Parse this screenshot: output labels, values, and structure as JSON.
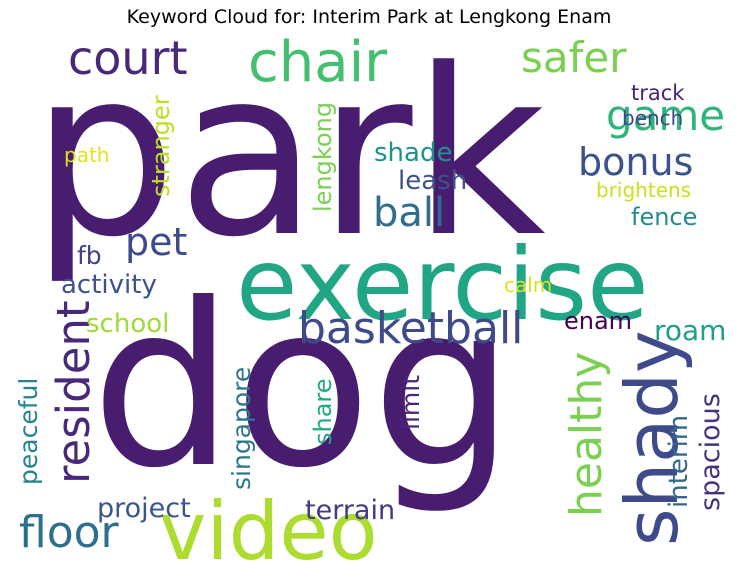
{
  "title": "Keyword Cloud for: Interim Park at Lengkong Enam",
  "chart_data": {
    "type": "wordcloud",
    "title": "Keyword Cloud for: Interim Park at Lengkong Enam",
    "words": [
      {
        "text": "park",
        "weight": 1.0,
        "color": "#481d6f"
      },
      {
        "text": "dog",
        "weight": 0.98,
        "color": "#481d6f"
      },
      {
        "text": "exercise",
        "weight": 0.55,
        "color": "#21a685"
      },
      {
        "text": "video",
        "weight": 0.42,
        "color": "#addc30"
      },
      {
        "text": "shady",
        "weight": 0.4,
        "color": "#3e4a89"
      },
      {
        "text": "chair",
        "weight": 0.28,
        "color": "#44bf70"
      },
      {
        "text": "basketball",
        "weight": 0.22,
        "color": "#3e4a89"
      },
      {
        "text": "court",
        "weight": 0.22,
        "color": "#482878"
      },
      {
        "text": "resident",
        "weight": 0.22,
        "color": "#482878"
      },
      {
        "text": "healthy",
        "weight": 0.22,
        "color": "#7ad151"
      },
      {
        "text": "floor",
        "weight": 0.2,
        "color": "#2d708e"
      },
      {
        "text": "game",
        "weight": 0.2,
        "color": "#2fb47c"
      },
      {
        "text": "safer",
        "weight": 0.2,
        "color": "#7ad151"
      },
      {
        "text": "bonus",
        "weight": 0.18,
        "color": "#3b528b"
      },
      {
        "text": "ball",
        "weight": 0.18,
        "color": "#2f6c8e"
      },
      {
        "text": "pet",
        "weight": 0.18,
        "color": "#3e4a89"
      },
      {
        "text": "roam",
        "weight": 0.14,
        "color": "#1f9e89"
      },
      {
        "text": "project",
        "weight": 0.13,
        "color": "#39568c"
      },
      {
        "text": "terrain",
        "weight": 0.13,
        "color": "#443983"
      },
      {
        "text": "interim",
        "weight": 0.13,
        "color": "#31688e"
      },
      {
        "text": "spacious",
        "weight": 0.13,
        "color": "#46337e"
      },
      {
        "text": "peaceful",
        "weight": 0.12,
        "color": "#25858e"
      },
      {
        "text": "singapore",
        "weight": 0.12,
        "color": "#2a788e"
      },
      {
        "text": "limit",
        "weight": 0.12,
        "color": "#482677"
      },
      {
        "text": "share",
        "weight": 0.12,
        "color": "#22a884"
      },
      {
        "text": "stranger",
        "weight": 0.11,
        "color": "#bddf26"
      },
      {
        "text": "lengkong",
        "weight": 0.11,
        "color": "#7ad151"
      },
      {
        "text": "shade",
        "weight": 0.12,
        "color": "#20928c"
      },
      {
        "text": "leash",
        "weight": 0.12,
        "color": "#3b528b"
      },
      {
        "text": "fence",
        "weight": 0.11,
        "color": "#238a8d"
      },
      {
        "text": "activity",
        "weight": 0.12,
        "color": "#3b528b"
      },
      {
        "text": "school",
        "weight": 0.12,
        "color": "#a0da39"
      },
      {
        "text": "enam",
        "weight": 0.11,
        "color": "#440154"
      },
      {
        "text": "fb",
        "weight": 0.11,
        "color": "#414487"
      },
      {
        "text": "track",
        "weight": 0.1,
        "color": "#482475"
      },
      {
        "text": "bench",
        "weight": 0.1,
        "color": "#3f4788"
      },
      {
        "text": "brightens",
        "weight": 0.1,
        "color": "#c8e020"
      },
      {
        "text": "path",
        "weight": 0.09,
        "color": "#e3e418"
      },
      {
        "text": "calm",
        "weight": 0.09,
        "color": "#d8e219"
      }
    ]
  }
}
